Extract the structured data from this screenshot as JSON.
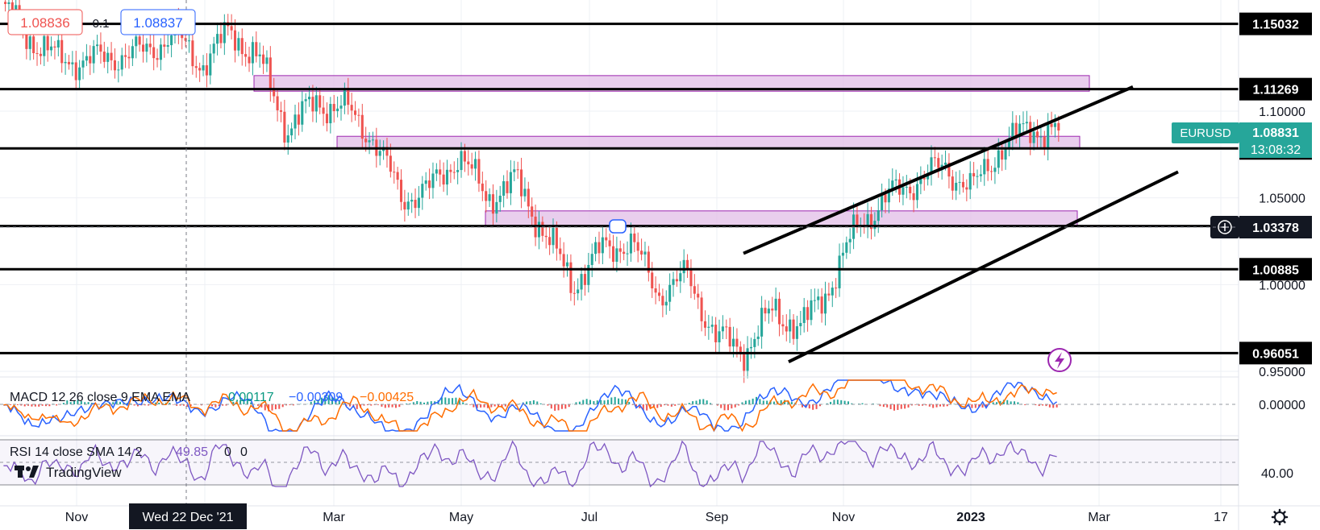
{
  "chart_data": {
    "type": "candlestick",
    "symbol": "EURUSD",
    "price_axis": {
      "ticks": [
        "1.10000",
        "1.05000",
        "1.00000",
        "0.95000"
      ],
      "tick_values": [
        1.1,
        1.05,
        1.0,
        0.95
      ]
    },
    "x_axis": {
      "ticks": [
        "Nov",
        "Mar",
        "May",
        "Jul",
        "Sep",
        "Nov",
        "2023",
        "Mar",
        "17"
      ],
      "crosshair_label": "Wed 22 Dec '21"
    },
    "horizontal_levels": [
      {
        "label": "1.15032",
        "value": 1.15032
      },
      {
        "label": "1.11269",
        "value": 1.11269
      },
      {
        "label": "1.07852",
        "value": 1.07852
      },
      {
        "label": "1.03378",
        "value": 1.03378
      },
      {
        "label": "1.00885",
        "value": 1.00885
      },
      {
        "label": "0.96051",
        "value": 0.96051
      }
    ],
    "zones": [
      {
        "from": "Feb 2022",
        "to": "Feb 2023",
        "low": 1.1115,
        "high": 1.1205
      },
      {
        "from": "Mar 2022",
        "to": "Feb 2023",
        "low": 1.0785,
        "high": 1.0855
      },
      {
        "from": "May 2022",
        "to": "Feb 2023",
        "low": 1.0335,
        "high": 1.0425
      }
    ],
    "trendlines": [
      {
        "from": [
          "Aug 2022",
          1.018
        ],
        "to": [
          "Feb 2023",
          1.114
        ]
      },
      {
        "from": [
          "Sep 2022",
          0.9555
        ],
        "to": [
          "Apr 2023",
          1.065
        ]
      }
    ],
    "price_series": [
      {
        "t": "Oct 2021",
        "v": 1.16
      },
      {
        "t": "Nov 2021",
        "v": 1.142
      },
      {
        "t": "Nov 2021",
        "v": 1.13
      },
      {
        "t": "Dec 2021",
        "v": 1.129
      },
      {
        "t": "Dec 2021",
        "v": 1.132
      },
      {
        "t": "Jan 2022",
        "v": 1.134
      },
      {
        "t": "Feb 2022",
        "v": 1.144
      },
      {
        "t": "Feb 2022",
        "v": 1.127
      },
      {
        "t": "Feb 2022",
        "v": 1.146
      },
      {
        "t": "Mar 2022",
        "v": 1.13
      },
      {
        "t": "Mar 2022",
        "v": 1.09
      },
      {
        "t": "Mar 2022",
        "v": 1.105
      },
      {
        "t": "Apr 2022",
        "v": 1.102
      },
      {
        "t": "Apr 2022",
        "v": 1.085
      },
      {
        "t": "May 2022",
        "v": 1.05
      },
      {
        "t": "May 2022",
        "v": 1.055
      },
      {
        "t": "Jun 2022",
        "v": 1.075
      },
      {
        "t": "Jun 2022",
        "v": 1.05
      },
      {
        "t": "Jun 2022",
        "v": 1.06
      },
      {
        "t": "Jul 2022",
        "v": 1.03
      },
      {
        "t": "Jul 2022",
        "v": 1.0
      },
      {
        "t": "Jul 2022",
        "v": 1.02
      },
      {
        "t": "Aug 2022",
        "v": 1.025
      },
      {
        "t": "Aug 2022",
        "v": 0.995
      },
      {
        "t": "Sep 2022",
        "v": 1.005
      },
      {
        "t": "Sep 2022",
        "v": 0.97
      },
      {
        "t": "Oct 2022",
        "v": 0.962
      },
      {
        "t": "Oct 2022",
        "v": 0.985
      },
      {
        "t": "Nov 2022",
        "v": 0.975
      },
      {
        "t": "Nov 2022",
        "v": 1.0
      },
      {
        "t": "Nov 2022",
        "v": 1.035
      },
      {
        "t": "Dec 2022",
        "v": 1.05
      },
      {
        "t": "Dec 2022",
        "v": 1.06
      },
      {
        "t": "Dec 2022",
        "v": 1.068
      },
      {
        "t": "Jan 2023",
        "v": 1.055
      },
      {
        "t": "Jan 2023",
        "v": 1.08
      },
      {
        "t": "Jan 2023",
        "v": 1.09
      },
      {
        "t": "Feb 2023",
        "v": 1.0883
      }
    ],
    "last_price": {
      "symbol": "EURUSD",
      "value": "1.08831",
      "countdown": "13:08:32"
    },
    "crosshair_price": "1.03378",
    "ohlc_tags": {
      "bid": "1.08836",
      "spread": "0.1",
      "ask": "1.08837"
    },
    "macd": {
      "label": "MACD 12 26 close 9 EMA EMA",
      "values": [
        "0.00117",
        "−0.00309",
        "−0.00425"
      ],
      "axis_tick": "0.00000",
      "colors": {
        "macd": "#2962ff",
        "signal": "#ff6d00",
        "hist_up": "#26a69a",
        "hist_down": "#ef5350"
      }
    },
    "rsi": {
      "label": "RSI 14 close SMA 14 2",
      "values": [
        "49.85",
        "0",
        "0"
      ],
      "axis_tick": "40.00",
      "color": "#7e57c2"
    }
  },
  "branding": {
    "logo_text": "TradingView"
  },
  "icons": [
    "lightning-icon",
    "crosshair-plus-icon",
    "settings-gear-icon"
  ],
  "colors": {
    "bull": "#26a69a",
    "bear": "#ef5350",
    "zone_fill": "#e1bee7",
    "zone_border": "#9c27b0",
    "level_line": "#000000",
    "last_price_bg": "#26a69a",
    "bid_color": "#ef5350",
    "ask_color": "#2962ff"
  }
}
